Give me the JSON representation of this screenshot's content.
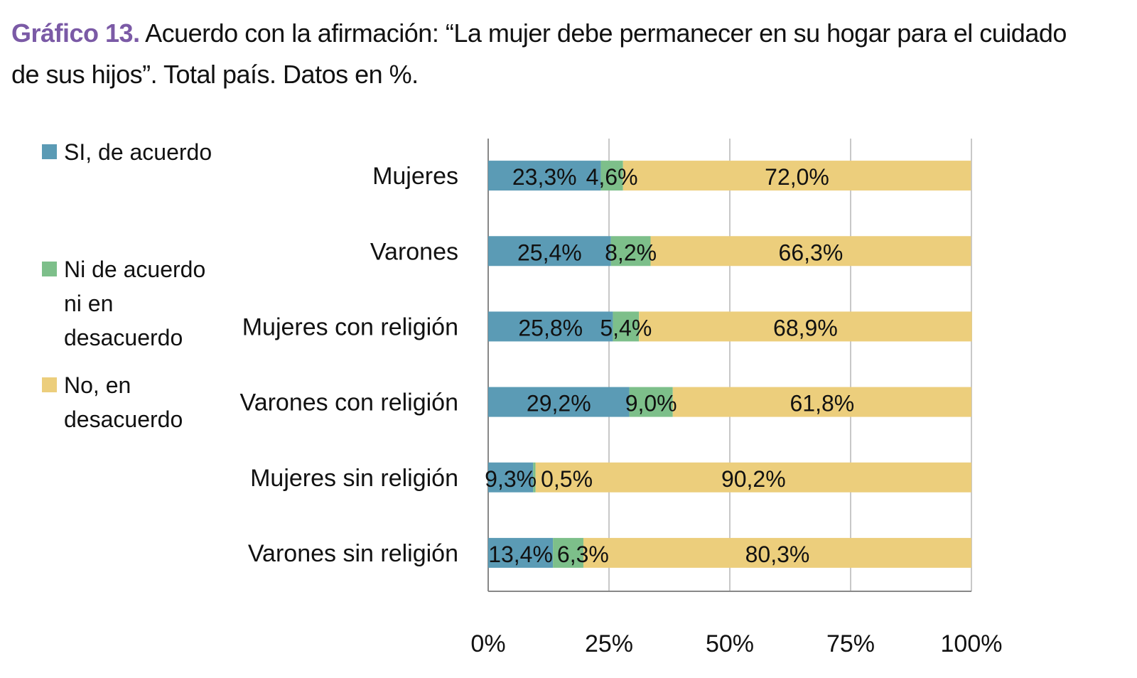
{
  "chart_data": {
    "type": "bar",
    "orientation": "horizontal",
    "stacked": true,
    "title_prefix": "Gráfico 13.",
    "title": "Acuerdo con la afirmación: “La mujer debe permanecer en su hogar para el cuidado de sus hijos”.  Total país. Datos en %.",
    "categories": [
      "Mujeres",
      "Varones",
      "Mujeres con religión",
      "Varones con religión",
      "Mujeres sin religión",
      "Varones sin religión"
    ],
    "series": [
      {
        "name": "SI, de acuerdo",
        "color": "#5b9bb5",
        "values": [
          23.3,
          25.4,
          25.8,
          29.2,
          9.3,
          13.4
        ],
        "labels": [
          "23,3%",
          "25,4%",
          "25,8%",
          "29,2%",
          "9,3%",
          "13,4%"
        ]
      },
      {
        "name": "Ni de acuerdo ni en desacuerdo",
        "color": "#7dbf8a",
        "values": [
          4.6,
          8.2,
          5.4,
          9.0,
          0.5,
          6.3
        ],
        "labels": [
          "4,6%",
          "8,2%",
          "5,4%",
          "9,0%",
          "0,5%",
          "6,3%"
        ]
      },
      {
        "name": "No, en desacuerdo",
        "color": "#ecce7c",
        "values": [
          72.0,
          66.3,
          68.9,
          61.8,
          90.2,
          80.3
        ],
        "labels": [
          "72,0%",
          "66,3%",
          "68,9%",
          "61,8%",
          "90,2%",
          "80,3%"
        ]
      }
    ],
    "xlim": [
      0,
      100
    ],
    "xticks": [
      "0%",
      "25%",
      "50%",
      "75%",
      "100%"
    ],
    "grid": true,
    "legend": "left",
    "title_accent_color": "#7b5aa6"
  }
}
